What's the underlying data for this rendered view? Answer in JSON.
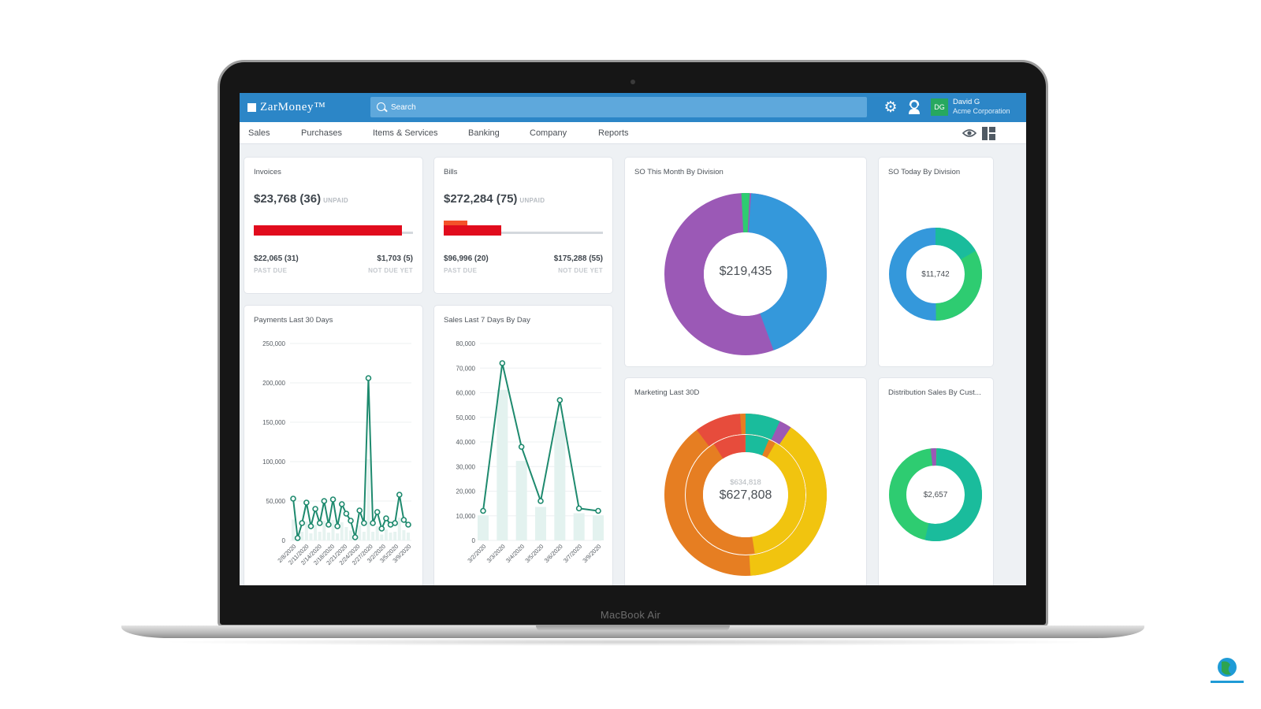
{
  "device": {
    "model_label": "MacBook Air"
  },
  "app": {
    "logo": "ZarMoney™",
    "search": {
      "placeholder": "Search"
    },
    "user": {
      "initials": "DG",
      "name": "David G",
      "org": "Acme Corporation"
    }
  },
  "nav": {
    "items": [
      "Sales",
      "Purchases",
      "Items & Services",
      "Banking",
      "Company",
      "Reports"
    ]
  },
  "colors": {
    "topbar": "#2c86c7",
    "accent_green": "#1e8a6e",
    "red": "#e10c1d"
  },
  "invoices": {
    "title": "Invoices",
    "amount": "$23,768 (36)",
    "status": "UNPAID",
    "past_due_value": "$22,065 (31)",
    "past_due_label": "PAST DUE",
    "not_due_value": "$1,703 (5)",
    "not_due_label": "NOT DUE YET",
    "past_due_fraction": 0.93
  },
  "bills": {
    "title": "Bills",
    "amount": "$272,284 (75)",
    "status": "UNPAID",
    "past_due_value": "$96,996 (20)",
    "past_due_label": "PAST DUE",
    "not_due_value": "$175,288 (55)",
    "not_due_label": "NOT DUE YET",
    "past_due_fraction": 0.36
  },
  "so_month": {
    "title": "SO This Month By Division",
    "center": "$219,435"
  },
  "so_today": {
    "title": "SO Today By Division",
    "center": "$11,742"
  },
  "marketing": {
    "title": "Marketing Last 30D",
    "center_top": "$634,818",
    "center": "$627,808"
  },
  "distribution": {
    "title": "Distribution Sales By Cust...",
    "center": "$2,657"
  },
  "payments_title": "Payments Last 30 Days",
  "sales_title": "Sales Last 7 Days By Day",
  "chart_data": [
    {
      "type": "line",
      "title": "Payments Last 30 Days",
      "ylim": [
        0,
        250000
      ],
      "yticks": [
        "250,000",
        "200,000",
        "150,000",
        "100,000",
        "50,000",
        "0"
      ],
      "xtick_labels": [
        "2/8/2020",
        "2/11/2020",
        "2/14/2020",
        "2/18/2020",
        "2/21/2020",
        "2/24/2020",
        "2/27/2020",
        "3/2/2020",
        "3/5/2020",
        "3/9/2020"
      ],
      "values": [
        53000,
        3000,
        22000,
        48000,
        18000,
        40000,
        22000,
        50000,
        20000,
        52000,
        18000,
        46000,
        34000,
        25000,
        4000,
        38000,
        22000,
        206000,
        22000,
        36000,
        15000,
        28000,
        20000,
        22000,
        58000,
        26000,
        20000
      ]
    },
    {
      "type": "line",
      "title": "Sales Last 7 Days By Day",
      "ylim": [
        0,
        80000
      ],
      "yticks": [
        "80,000",
        "70,000",
        "60,000",
        "50,000",
        "40,000",
        "30,000",
        "20,000",
        "10,000",
        "0"
      ],
      "xtick_labels": [
        "3/2/2020",
        "3/3/2020",
        "3/4/2020",
        "3/5/2020",
        "3/6/2020",
        "3/7/2020",
        "3/9/2020"
      ],
      "values": [
        12000,
        72000,
        38000,
        16000,
        57000,
        13000,
        12000
      ]
    }
  ]
}
